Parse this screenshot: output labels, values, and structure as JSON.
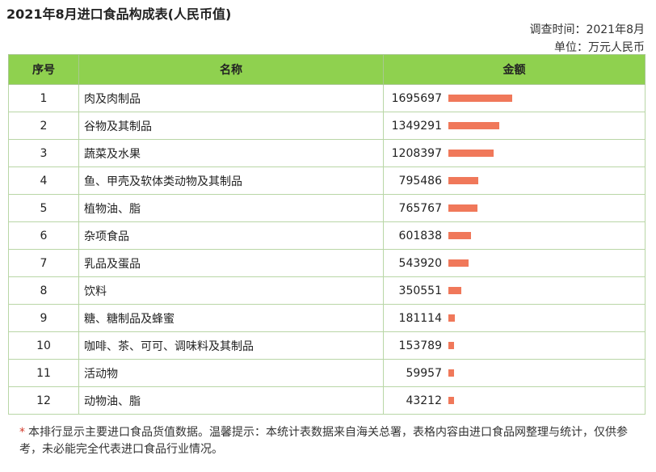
{
  "title": "2021年8月进口食品构成表(人民币值)",
  "survey_time": "调查时间：2021年8月",
  "unit": "单位：万元人民币",
  "headers": {
    "seq": "序号",
    "name": "名称",
    "amount": "金额"
  },
  "colors": {
    "header_bg": "#8fd14f",
    "bar": "#f0785a",
    "border": "#b9d6a6"
  },
  "chart_data": {
    "type": "table",
    "columns": [
      "序号",
      "名称",
      "金额"
    ],
    "rows": [
      {
        "seq": "1",
        "name": "肉及肉制品",
        "value": 1695697
      },
      {
        "seq": "2",
        "name": "谷物及其制品",
        "value": 1349291
      },
      {
        "seq": "3",
        "name": "蔬菜及水果",
        "value": 1208397
      },
      {
        "seq": "4",
        "name": "鱼、甲壳及软体类动物及其制品",
        "value": 795486
      },
      {
        "seq": "5",
        "name": "植物油、脂",
        "value": 765767
      },
      {
        "seq": "6",
        "name": "杂项食品",
        "value": 601838
      },
      {
        "seq": "7",
        "name": "乳品及蛋品",
        "value": 543920
      },
      {
        "seq": "8",
        "name": "饮料",
        "value": 350551
      },
      {
        "seq": "9",
        "name": "糖、糖制品及蜂蜜",
        "value": 181114
      },
      {
        "seq": "10",
        "name": "咖啡、茶、可可、调味料及其制品",
        "value": 153789
      },
      {
        "seq": "11",
        "name": "活动物",
        "value": 59957
      },
      {
        "seq": "12",
        "name": "动物油、脂",
        "value": 43212
      }
    ]
  },
  "note": {
    "star": "*",
    "text": "本排行显示主要进口食品货值数据。温馨提示：本统计表数据来自海关总署，表格内容由进口食品网整理与统计，仅供参考，未必能完全代表进口食品行业情况。"
  }
}
